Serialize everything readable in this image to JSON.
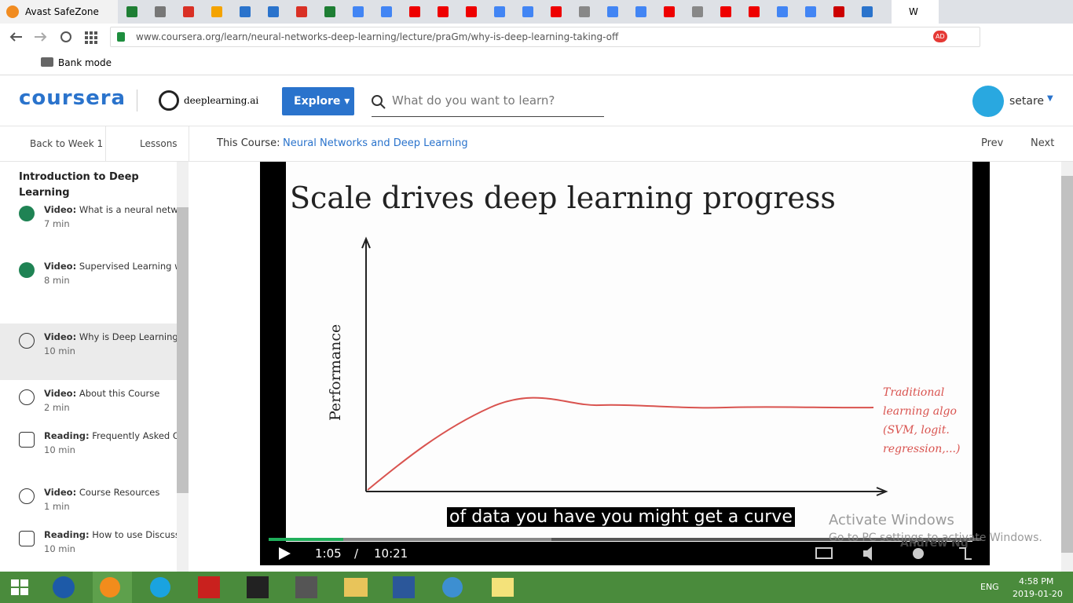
{
  "browser": {
    "first_tab": "Avast SafeZone",
    "active_tab": "W",
    "url": "www.coursera.org/learn/neural-networks-deep-learning/lecture/praGm/why-is-deep-learning-taking-off",
    "ad_badge": "AD",
    "bookmark": "Bank mode"
  },
  "header": {
    "logo": "coursera",
    "partner": "deeplearning.ai",
    "explore": "Explore",
    "search_placeholder": "What do you want to learn?",
    "user": "setare"
  },
  "subnav": {
    "back": "Back to Week 1",
    "lessons": "Lessons",
    "course_label": "This Course:",
    "course": "Neural Networks and Deep Learning",
    "prev": "Prev",
    "next": "Next"
  },
  "sidebar": {
    "title": "Introduction to Deep Learning",
    "items": [
      {
        "kind": "Video:",
        "title": "What is a neural network?",
        "duration": "7 min",
        "icon": "done"
      },
      {
        "kind": "Video:",
        "title": "Supervised Learning with Neural Networks",
        "duration": "8 min",
        "icon": "done"
      },
      {
        "kind": "Video:",
        "title": "Why is Deep Learning taking off?",
        "duration": "10 min",
        "icon": "play",
        "active": true
      },
      {
        "kind": "Video:",
        "title": "About this Course",
        "duration": "2 min",
        "icon": "play"
      },
      {
        "kind": "Reading:",
        "title": "Frequently Asked Questions",
        "duration": "10 min",
        "icon": "book"
      },
      {
        "kind": "Video:",
        "title": "Course Resources",
        "duration": "1 min",
        "icon": "play"
      },
      {
        "kind": "Reading:",
        "title": "How to use Discussion Forums",
        "duration": "10 min",
        "icon": "book"
      }
    ]
  },
  "video": {
    "slide_title": "Scale drives deep learning progress",
    "y_label": "Performance",
    "annotation": "Traditional learning algo (SVM, logit. regression,...)",
    "watermark": "Andrew Ng",
    "caption": "of data you have you might get a curve",
    "current_time": "1:05",
    "separator": "/",
    "total_time": "10:21"
  },
  "overlay": {
    "activate_title": "Activate Windows",
    "activate_sub": "Go to PC settings to activate Windows."
  },
  "taskbar": {
    "language": "ENG",
    "time": "4:58 PM",
    "date": "2019-01-20"
  }
}
